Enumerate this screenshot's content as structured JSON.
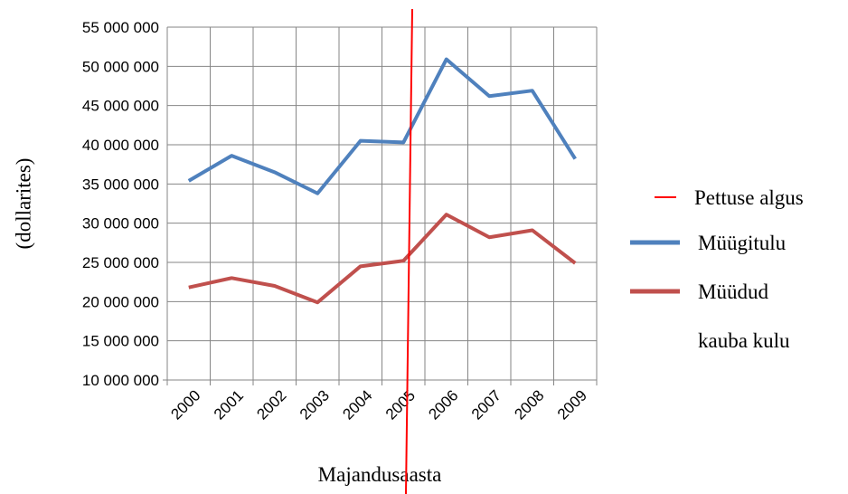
{
  "chart_data": {
    "type": "line",
    "x_label": "Majandusaasta",
    "y_label": "(dollarites)",
    "categories": [
      "2000",
      "2001",
      "2002",
      "2003",
      "2004",
      "2005",
      "2006",
      "2007",
      "2008",
      "2009"
    ],
    "series": [
      {
        "name": "Müügitulu",
        "color": "#4f81bd",
        "values": [
          35400000,
          38600000,
          36500000,
          33800000,
          40500000,
          40300000,
          50900000,
          46200000,
          46900000,
          38200000
        ]
      },
      {
        "name": "Müüdud kauba kulu",
        "color": "#c0504d",
        "values": [
          21800000,
          23000000,
          22000000,
          19900000,
          24500000,
          25200000,
          31100000,
          28200000,
          29100000,
          24900000
        ]
      }
    ],
    "annotation": {
      "text": "Pettuse algus",
      "color": "#ff0000"
    },
    "ylim": [
      10000000,
      55000000
    ],
    "yticks": [
      {
        "value": 10000000,
        "label": "10 000 000"
      },
      {
        "value": 15000000,
        "label": "15 000 000"
      },
      {
        "value": 20000000,
        "label": "20 000 000"
      },
      {
        "value": 25000000,
        "label": "25 000 000"
      },
      {
        "value": 30000000,
        "label": "30 000 000"
      },
      {
        "value": 35000000,
        "label": "35 000 000"
      },
      {
        "value": 40000000,
        "label": "40 000 000"
      },
      {
        "value": 45000000,
        "label": "45 000 000"
      },
      {
        "value": 50000000,
        "label": "50 000 000"
      },
      {
        "value": 55000000,
        "label": "55 000 000"
      }
    ],
    "grid": true
  }
}
